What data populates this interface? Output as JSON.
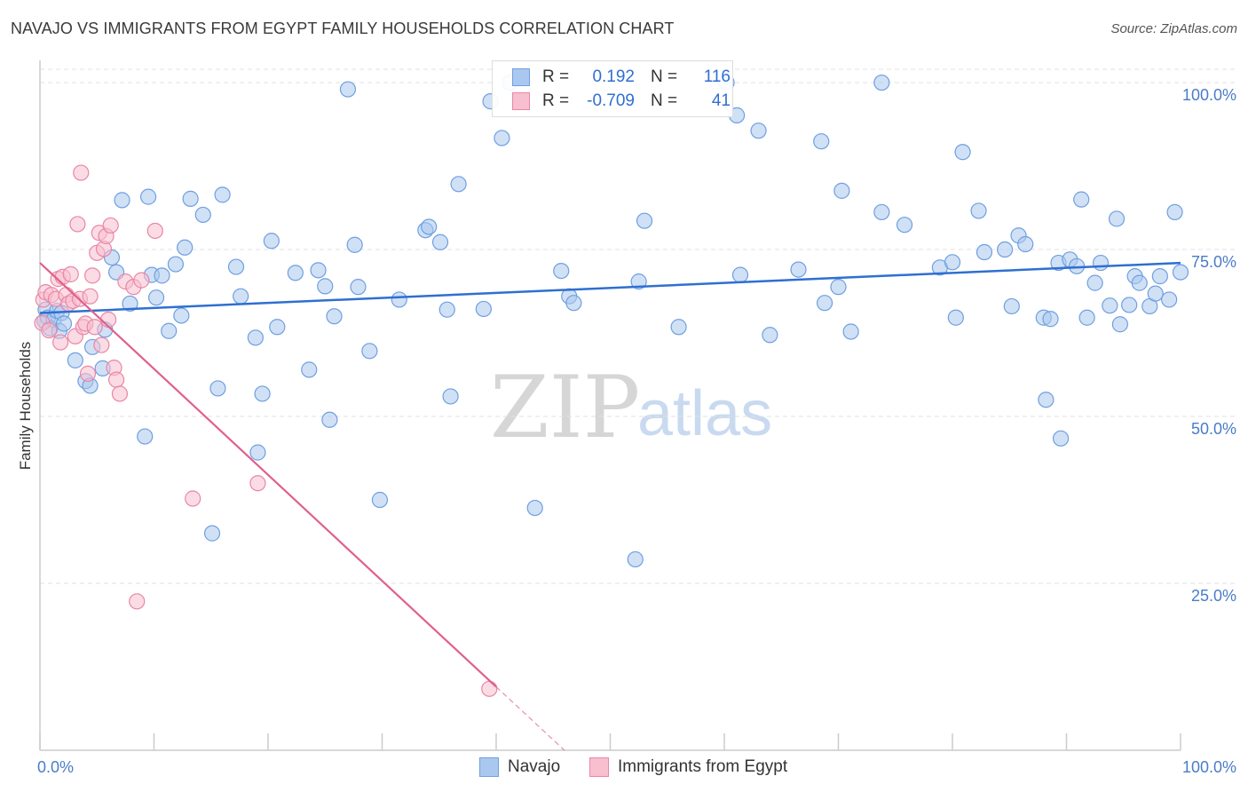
{
  "header": {
    "title": "NAVAJO VS IMMIGRANTS FROM EGYPT FAMILY HOUSEHOLDS CORRELATION CHART",
    "source": "Source: ZipAtlas.com"
  },
  "watermark": {
    "part1": "ZIP",
    "part2": "atlas"
  },
  "legend": {
    "rows": [
      {
        "r_label": "R =",
        "r_value": "0.192",
        "n_label": "N =",
        "n_value": "116",
        "color": "#aac8ef",
        "border": "#6f9fe0"
      },
      {
        "r_label": "R =",
        "r_value": "-0.709",
        "n_label": "N =",
        "n_value": "41",
        "color": "#f7bfd0",
        "border": "#ea86a6"
      }
    ]
  },
  "bottom_legend": [
    {
      "label": "Navajo",
      "color": "#aac8ef",
      "border": "#6f9fe0"
    },
    {
      "label": "Immigrants from Egypt",
      "color": "#f7bfd0",
      "border": "#ea86a6"
    }
  ],
  "chart_data": {
    "type": "scatter",
    "title": "NAVAJO VS IMMIGRANTS FROM EGYPT FAMILY HOUSEHOLDS CORRELATION CHART",
    "xlabel": "",
    "ylabel": "Family Households",
    "xlim": [
      0,
      100
    ],
    "ylim": [
      0,
      102
    ],
    "x_tick_labels": [
      "0.0%",
      "100.0%"
    ],
    "y_ticks": [
      25,
      50,
      75,
      100
    ],
    "y_tick_labels": [
      "25.0%",
      "50.0%",
      "75.0%",
      "100.0%"
    ],
    "grid": "horizontal dashed",
    "legend_position": "top-center",
    "series": [
      {
        "name": "Navajo",
        "color": "#aac8ef",
        "stroke": "#6f9fe0",
        "trend": {
          "x": [
            0,
            100
          ],
          "y": [
            65.5,
            73.0
          ],
          "color": "#2f6fd1"
        },
        "points": [
          [
            0.4,
            64.3
          ],
          [
            0.5,
            66.0
          ],
          [
            0.7,
            64.8
          ],
          [
            0.9,
            63.2
          ],
          [
            1.2,
            64.5
          ],
          [
            1.5,
            65.8
          ],
          [
            1.7,
            62.8
          ],
          [
            1.9,
            65.5
          ],
          [
            2.1,
            63.9
          ],
          [
            3.1,
            58.4
          ],
          [
            4.0,
            55.3
          ],
          [
            4.4,
            54.6
          ],
          [
            4.6,
            60.4
          ],
          [
            5.5,
            57.2
          ],
          [
            5.7,
            63.0
          ],
          [
            6.3,
            73.8
          ],
          [
            6.7,
            71.6
          ],
          [
            7.2,
            82.4
          ],
          [
            7.9,
            66.9
          ],
          [
            9.2,
            47.0
          ],
          [
            9.5,
            82.9
          ],
          [
            9.8,
            71.2
          ],
          [
            10.2,
            67.8
          ],
          [
            10.7,
            71.1
          ],
          [
            11.3,
            62.8
          ],
          [
            11.9,
            72.8
          ],
          [
            12.4,
            65.1
          ],
          [
            12.7,
            75.3
          ],
          [
            13.2,
            82.6
          ],
          [
            14.3,
            80.2
          ],
          [
            15.1,
            32.5
          ],
          [
            15.6,
            54.2
          ],
          [
            16.0,
            83.2
          ],
          [
            17.2,
            72.4
          ],
          [
            17.6,
            68.0
          ],
          [
            18.9,
            61.8
          ],
          [
            19.1,
            44.6
          ],
          [
            19.5,
            53.4
          ],
          [
            20.3,
            76.3
          ],
          [
            20.8,
            63.4
          ],
          [
            22.4,
            71.5
          ],
          [
            23.6,
            57.0
          ],
          [
            24.4,
            71.9
          ],
          [
            25.0,
            69.5
          ],
          [
            25.4,
            49.5
          ],
          [
            25.8,
            65.0
          ],
          [
            27.0,
            99.0
          ],
          [
            27.6,
            75.7
          ],
          [
            27.9,
            69.4
          ],
          [
            28.9,
            59.8
          ],
          [
            29.8,
            37.5
          ],
          [
            31.5,
            67.5
          ],
          [
            33.8,
            77.9
          ],
          [
            34.1,
            78.4
          ],
          [
            35.1,
            76.1
          ],
          [
            35.7,
            66.0
          ],
          [
            36.0,
            53.0
          ],
          [
            36.7,
            84.8
          ],
          [
            38.9,
            66.1
          ],
          [
            39.5,
            97.2
          ],
          [
            40.5,
            91.7
          ],
          [
            41.2,
            100.0
          ],
          [
            43.4,
            36.3
          ],
          [
            45.7,
            71.8
          ],
          [
            46.4,
            68.0
          ],
          [
            46.8,
            67.0
          ],
          [
            52.2,
            28.6
          ],
          [
            52.5,
            70.2
          ],
          [
            53.0,
            79.3
          ],
          [
            56.0,
            63.4
          ],
          [
            60.2,
            100.0
          ],
          [
            61.1,
            95.1
          ],
          [
            61.4,
            71.2
          ],
          [
            63.0,
            92.8
          ],
          [
            64.0,
            62.2
          ],
          [
            66.5,
            72.0
          ],
          [
            68.5,
            91.2
          ],
          [
            68.8,
            67.0
          ],
          [
            70.0,
            69.4
          ],
          [
            70.3,
            83.8
          ],
          [
            71.1,
            62.7
          ],
          [
            73.8,
            80.6
          ],
          [
            75.8,
            78.7
          ],
          [
            78.9,
            72.3
          ],
          [
            80.0,
            73.1
          ],
          [
            80.3,
            64.8
          ],
          [
            80.9,
            89.6
          ],
          [
            82.3,
            80.8
          ],
          [
            82.8,
            74.6
          ],
          [
            84.6,
            75.0
          ],
          [
            85.2,
            66.5
          ],
          [
            85.8,
            77.1
          ],
          [
            86.4,
            75.8
          ],
          [
            88.0,
            64.8
          ],
          [
            88.2,
            52.5
          ],
          [
            88.6,
            64.6
          ],
          [
            89.3,
            73.0
          ],
          [
            89.5,
            46.7
          ],
          [
            90.3,
            73.5
          ],
          [
            90.9,
            72.5
          ],
          [
            91.3,
            82.5
          ],
          [
            91.8,
            64.8
          ],
          [
            92.5,
            70.0
          ],
          [
            93.0,
            73.0
          ],
          [
            93.8,
            66.6
          ],
          [
            94.4,
            79.6
          ],
          [
            94.7,
            63.8
          ],
          [
            95.5,
            66.7
          ],
          [
            96.0,
            71.0
          ],
          [
            96.4,
            70.0
          ],
          [
            97.3,
            66.5
          ],
          [
            97.8,
            68.4
          ],
          [
            98.2,
            71.0
          ],
          [
            99.0,
            67.5
          ],
          [
            99.5,
            80.6
          ],
          [
            100.0,
            71.6
          ],
          [
            73.8,
            100.0
          ]
        ]
      },
      {
        "name": "Immigrants from Egypt",
        "color": "#f7bfd0",
        "stroke": "#ea86a6",
        "trend": {
          "x": [
            0,
            40
          ],
          "y": [
            73.0,
            9.5
          ],
          "dashed_to_x": 46,
          "color": "#e0608c"
        },
        "points": [
          [
            0.2,
            64.0
          ],
          [
            0.3,
            67.5
          ],
          [
            0.5,
            68.6
          ],
          [
            0.8,
            62.9
          ],
          [
            1.0,
            68.2
          ],
          [
            1.4,
            67.6
          ],
          [
            1.6,
            70.6
          ],
          [
            1.8,
            61.1
          ],
          [
            2.0,
            70.9
          ],
          [
            2.3,
            68.2
          ],
          [
            2.5,
            66.9
          ],
          [
            2.7,
            71.3
          ],
          [
            2.9,
            67.3
          ],
          [
            3.1,
            62.0
          ],
          [
            3.3,
            78.8
          ],
          [
            3.5,
            67.6
          ],
          [
            3.6,
            86.5
          ],
          [
            3.8,
            63.4
          ],
          [
            4.0,
            63.9
          ],
          [
            4.2,
            56.4
          ],
          [
            4.4,
            68.0
          ],
          [
            4.6,
            71.1
          ],
          [
            4.8,
            63.4
          ],
          [
            5.0,
            74.5
          ],
          [
            5.2,
            77.5
          ],
          [
            5.4,
            60.7
          ],
          [
            5.6,
            75.1
          ],
          [
            5.8,
            77.0
          ],
          [
            6.0,
            64.5
          ],
          [
            6.2,
            78.6
          ],
          [
            6.5,
            57.3
          ],
          [
            6.7,
            55.5
          ],
          [
            7.0,
            53.4
          ],
          [
            7.5,
            70.2
          ],
          [
            8.2,
            69.4
          ],
          [
            8.5,
            22.3
          ],
          [
            8.9,
            70.4
          ],
          [
            10.1,
            77.8
          ],
          [
            13.4,
            37.7
          ],
          [
            19.1,
            40.0
          ],
          [
            39.4,
            9.2
          ]
        ]
      }
    ]
  }
}
